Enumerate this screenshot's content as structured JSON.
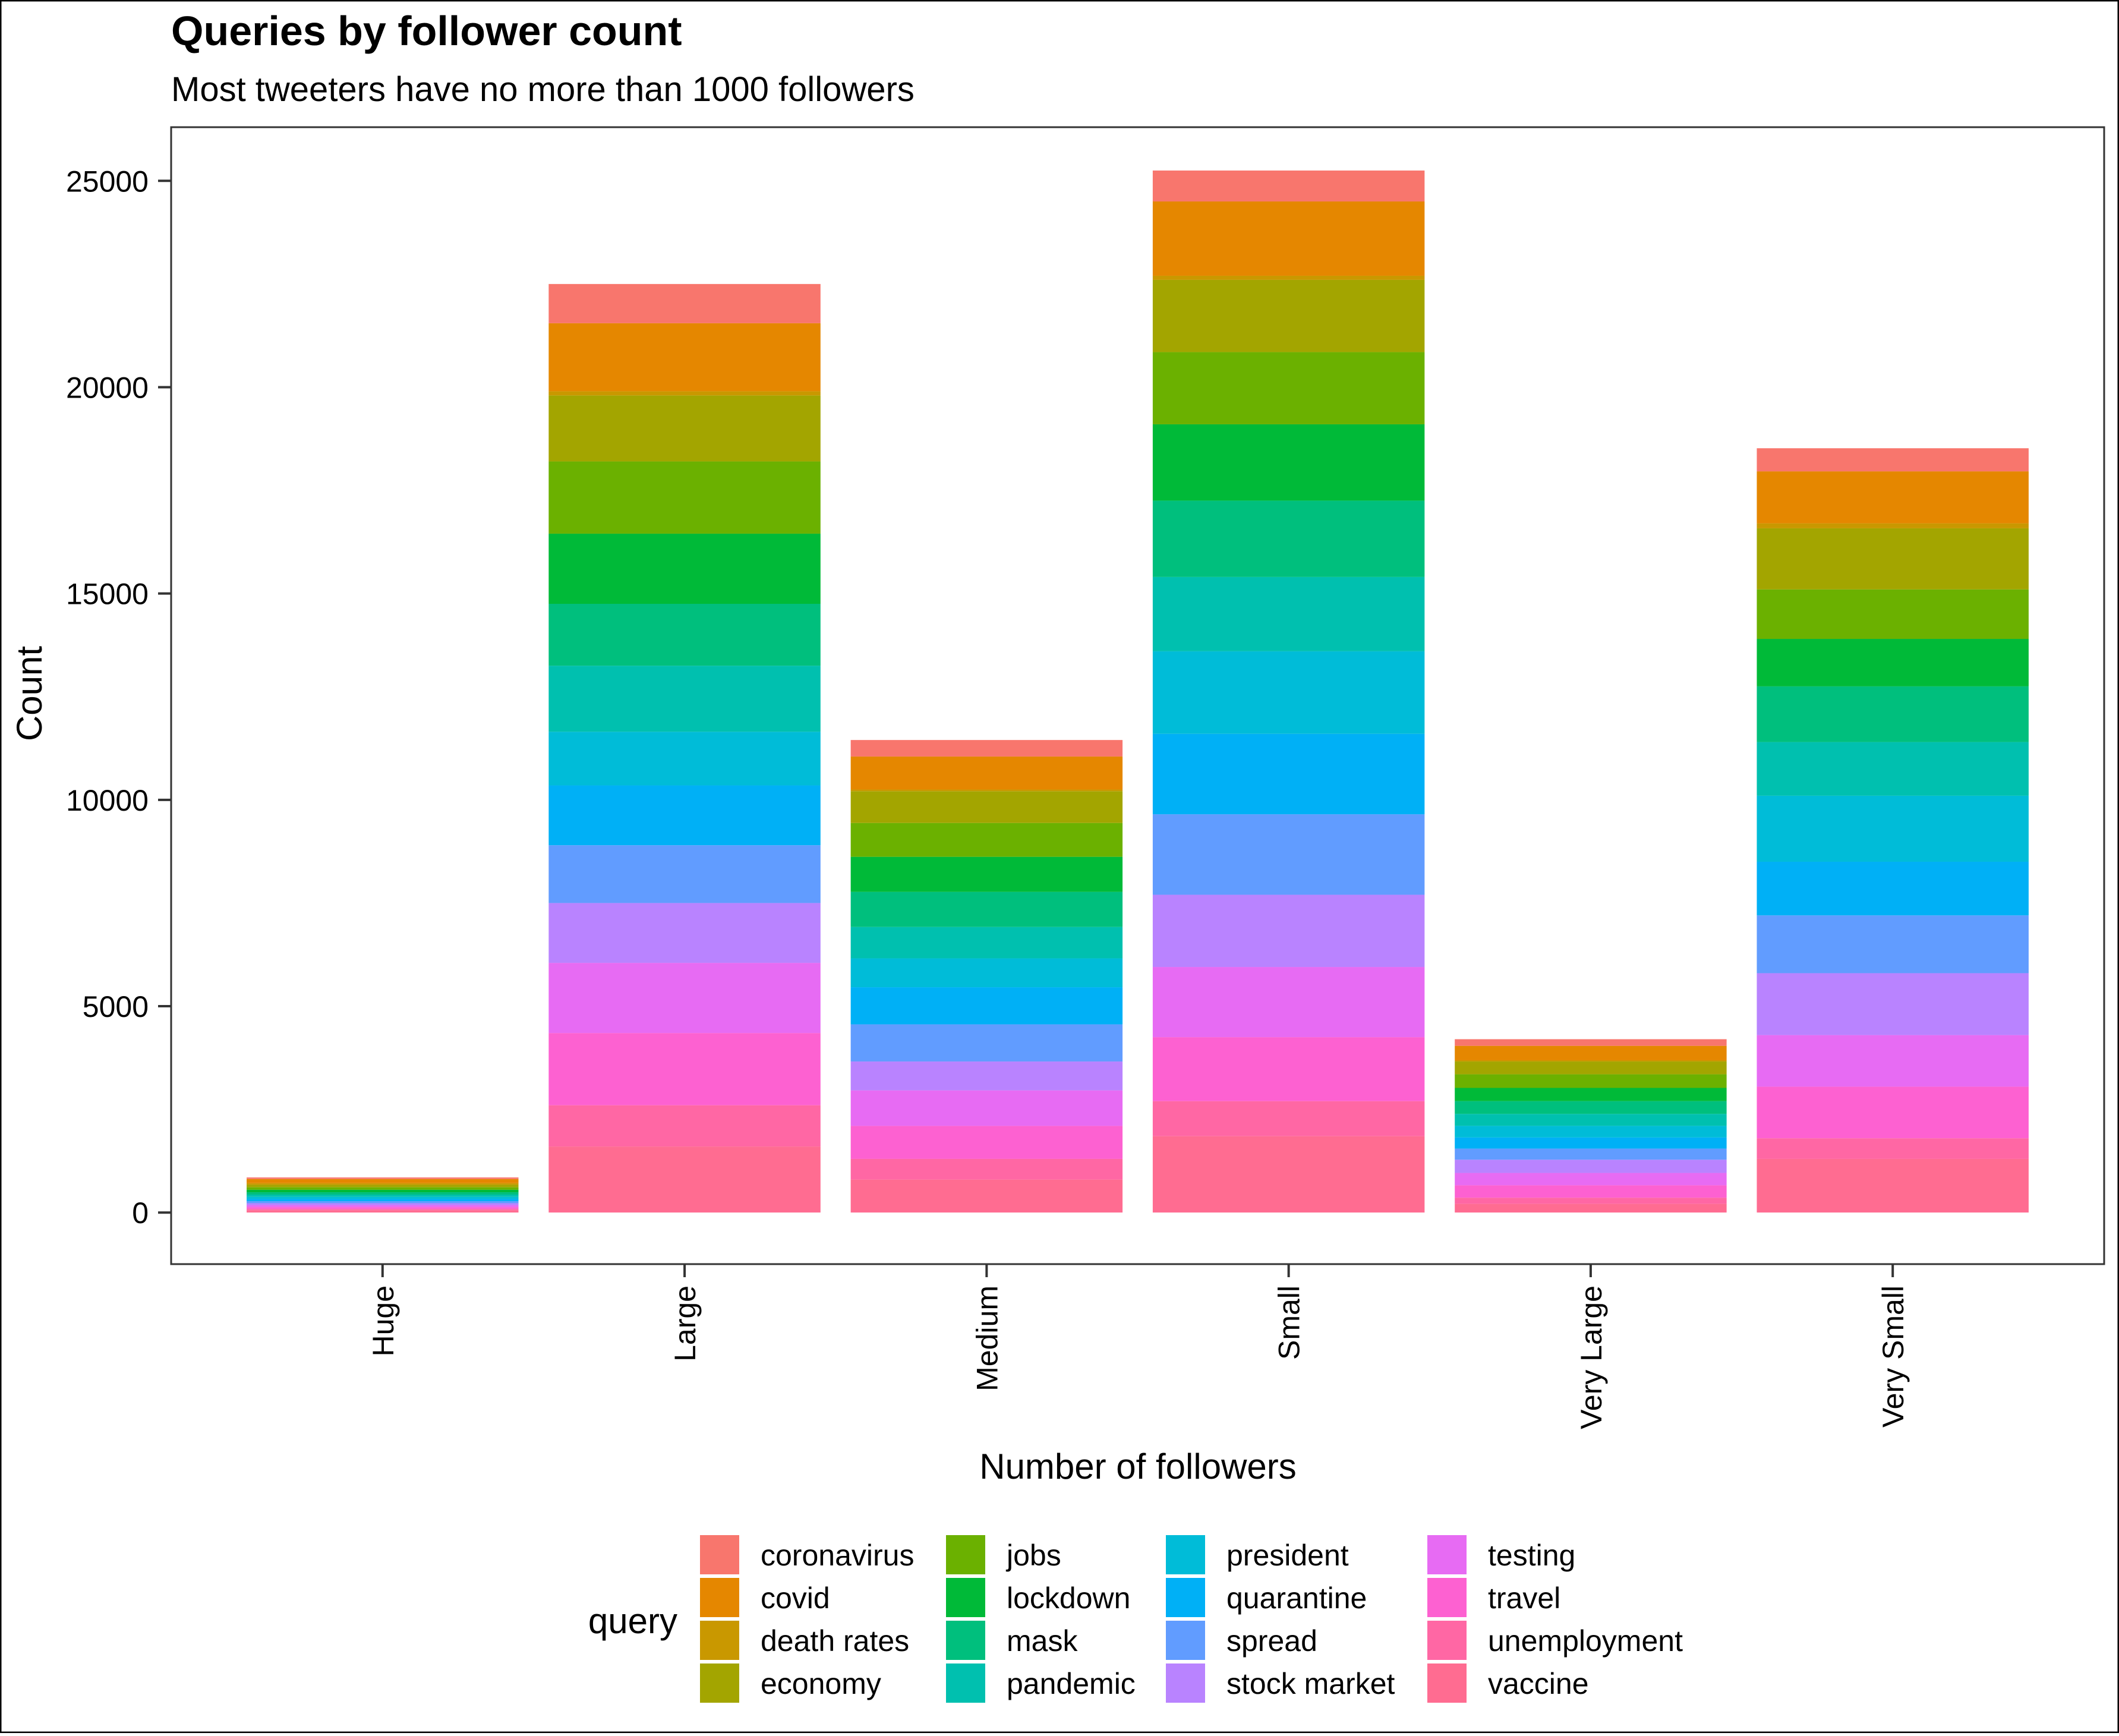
{
  "colors": {
    "coronavirus": "#F8766D",
    "covid": "#E58700",
    "death rates": "#C99800",
    "economy": "#A3A500",
    "jobs": "#6BB100",
    "lockdown": "#00BA38",
    "mask": "#00BF7D",
    "pandemic": "#00C0AF",
    "president": "#00BCD8",
    "quarantine": "#00B0F6",
    "spread": "#619CFF",
    "stock market": "#B983FF",
    "testing": "#E76BF3",
    "travel": "#FD61D1",
    "unemployment": "#FF67A4",
    "vaccine": "#FF6C91"
  },
  "chart_data": {
    "type": "bar",
    "stacked": true,
    "title": "Queries by follower count",
    "subtitle": "Most tweeters have no more than 1000 followers",
    "xlabel": "Number of followers",
    "ylabel": "Count",
    "ylim": [
      -1250,
      26300
    ],
    "yticks": [
      0,
      5000,
      10000,
      15000,
      20000,
      25000
    ],
    "ytick_labels": [
      "0",
      "5000",
      "10000",
      "15000",
      "20000",
      "25000"
    ],
    "grid": false,
    "legend": {
      "title": "query",
      "position": "bottom",
      "columns": 4
    },
    "categories": [
      "Huge",
      "Large",
      "Medium",
      "Small",
      "Very Large",
      "Very Small"
    ],
    "series": [
      {
        "name": "coronavirus",
        "values": [
          38,
          950,
          400,
          750,
          160,
          560
        ]
      },
      {
        "name": "covid",
        "values": [
          100,
          1650,
          800,
          1800,
          350,
          1260
        ]
      },
      {
        "name": "death rates",
        "values": [
          38,
          100,
          40,
          100,
          30,
          120
        ]
      },
      {
        "name": "economy",
        "values": [
          62,
          1600,
          770,
          1750,
          310,
          1480
        ]
      },
      {
        "name": "jobs",
        "values": [
          60,
          1750,
          820,
          1750,
          330,
          1200
        ]
      },
      {
        "name": "lockdown",
        "values": [
          60,
          1700,
          850,
          1850,
          320,
          1150
        ]
      },
      {
        "name": "mask",
        "values": [
          57,
          1500,
          850,
          1850,
          310,
          1350
        ]
      },
      {
        "name": "pandemic",
        "values": [
          55,
          1600,
          760,
          1800,
          290,
          1300
        ]
      },
      {
        "name": "president",
        "values": [
          52,
          1300,
          700,
          2000,
          280,
          1600
        ]
      },
      {
        "name": "quarantine",
        "values": [
          52,
          1450,
          900,
          1950,
          270,
          1300
        ]
      },
      {
        "name": "spread",
        "values": [
          50,
          1400,
          900,
          1950,
          270,
          1400
        ]
      },
      {
        "name": "stock market",
        "values": [
          50,
          1450,
          700,
          1750,
          320,
          1500
        ]
      },
      {
        "name": "testing",
        "values": [
          45,
          1700,
          860,
          1700,
          300,
          1250
        ]
      },
      {
        "name": "travel",
        "values": [
          45,
          1750,
          800,
          1550,
          300,
          1250
        ]
      },
      {
        "name": "unemployment",
        "values": [
          30,
          1000,
          500,
          850,
          150,
          500
        ]
      },
      {
        "name": "vaccine",
        "values": [
          56,
          1600,
          800,
          1850,
          210,
          1300
        ]
      }
    ]
  }
}
